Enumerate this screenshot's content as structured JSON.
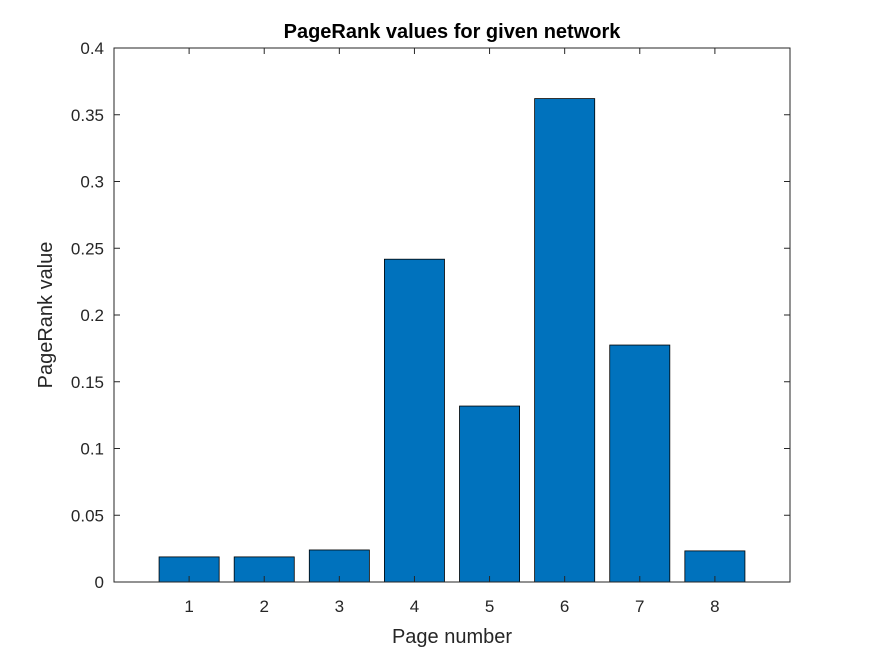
{
  "chart_data": {
    "type": "bar",
    "title": "PageRank values for given network",
    "xlabel": "Page number",
    "ylabel": "PageRank value",
    "categories": [
      "1",
      "2",
      "3",
      "4",
      "5",
      "6",
      "7",
      "8"
    ],
    "values": [
      0.0188,
      0.0188,
      0.024,
      0.2418,
      0.1318,
      0.3621,
      0.1775,
      0.0233
    ],
    "xlim": [
      0,
      9
    ],
    "ylim": [
      0,
      0.4
    ],
    "yticks": [
      "0",
      "0.05",
      "0.1",
      "0.15",
      "0.2",
      "0.25",
      "0.3",
      "0.35",
      "0.4"
    ],
    "grid": false,
    "legend": false,
    "colors": {
      "bar_fill": "#0072BD",
      "bar_edge": "#000000",
      "axis": "#262626",
      "background": "#ffffff"
    }
  }
}
